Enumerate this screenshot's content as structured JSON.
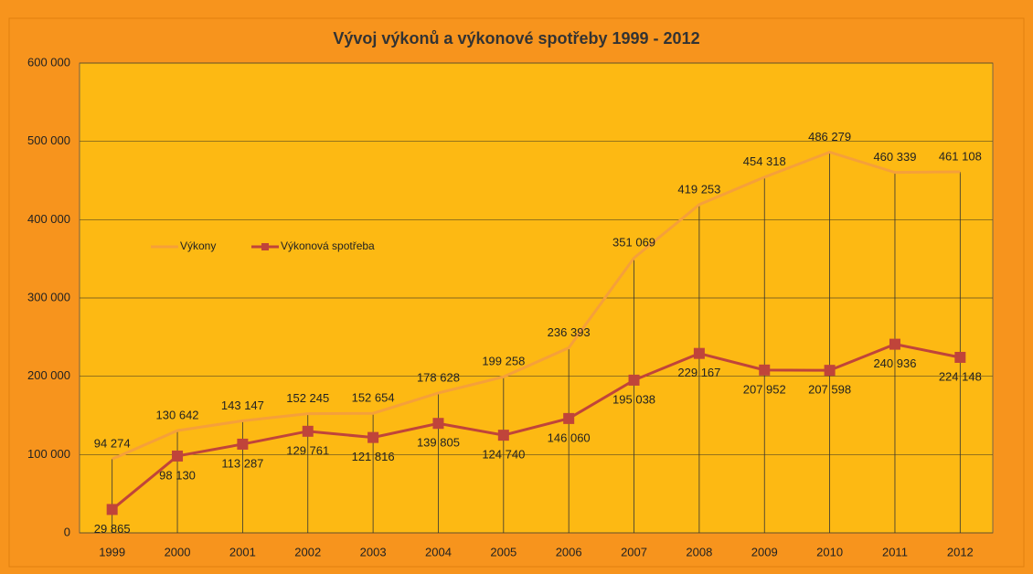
{
  "chart_data": {
    "type": "line",
    "title": "Vývoj výkonů a výkonové spotřeby 1999 - 2012",
    "categories": [
      "1999",
      "2000",
      "2001",
      "2002",
      "2003",
      "2004",
      "2005",
      "2006",
      "2007",
      "2008",
      "2009",
      "2010",
      "2011",
      "2012"
    ],
    "series": [
      {
        "name": "Výkony",
        "color": "#f5a03a",
        "values": [
          94274,
          130642,
          143147,
          152245,
          152654,
          178628,
          199258,
          236393,
          351069,
          419253,
          454318,
          486279,
          460339,
          461108
        ],
        "value_labels": [
          "94 274",
          "130 642",
          "143 147",
          "152 245",
          "152 654",
          "178 628",
          "199 258",
          "236 393",
          "351 069",
          "419 253",
          "454 318",
          "486 279",
          "460 339",
          "461 108"
        ]
      },
      {
        "name": "Výkonová spotřeba",
        "color": "#c0443a",
        "marker": "square",
        "values": [
          29865,
          98130,
          113287,
          129761,
          121816,
          139805,
          124740,
          146060,
          195038,
          229167,
          207952,
          207598,
          240936,
          224148
        ],
        "value_labels": [
          "29 865",
          "98 130",
          "113 287",
          "129 761",
          "121 816",
          "139 805",
          "124 740",
          "146 060",
          "195 038",
          "229 167",
          "207 952",
          "207 598",
          "240 936",
          "224 148"
        ]
      }
    ],
    "ylim": [
      0,
      600000
    ],
    "yticks": [
      {
        "value": 0,
        "label": "0"
      },
      {
        "value": 100000,
        "label": "100 000"
      },
      {
        "value": 200000,
        "label": "200 000"
      },
      {
        "value": 300000,
        "label": "300 000"
      },
      {
        "value": 400000,
        "label": "400 000"
      },
      {
        "value": 500000,
        "label": "500 000"
      },
      {
        "value": 600000,
        "label": "600 000"
      }
    ],
    "grid": true,
    "drop_lines": true,
    "legend": "left"
  }
}
